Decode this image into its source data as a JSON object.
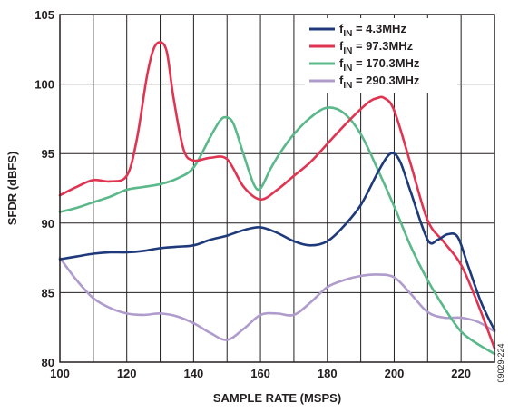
{
  "chart_data": {
    "type": "line",
    "title": "",
    "xlabel": "SAMPLE RATE (MSPS)",
    "ylabel": "SFDR (dBFS)",
    "xlim": [
      100,
      230
    ],
    "ylim": [
      80,
      105
    ],
    "xticks": [
      100,
      120,
      140,
      160,
      180,
      200,
      220
    ],
    "yticks": [
      80,
      85,
      90,
      95,
      100,
      105
    ],
    "grid": true,
    "legend_position": "top-right",
    "series": [
      {
        "name_main": "f",
        "name_sub": "IN",
        "name_rest": " = 4.3MHz",
        "color": "#1f3a7a",
        "x": [
          100,
          105,
          110,
          115,
          120,
          125,
          130,
          135,
          140,
          145,
          150,
          155,
          160,
          165,
          170,
          175,
          180,
          185,
          190,
          195,
          198,
          200,
          202,
          205,
          210,
          213,
          216,
          219,
          222,
          226,
          230
        ],
        "y": [
          87.4,
          87.6,
          87.8,
          87.9,
          87.9,
          88.0,
          88.2,
          88.3,
          88.4,
          88.8,
          89.1,
          89.5,
          89.7,
          89.3,
          88.7,
          88.4,
          88.7,
          89.8,
          91.3,
          93.6,
          94.8,
          95.0,
          94.3,
          92.2,
          88.8,
          88.8,
          89.2,
          89.0,
          87.0,
          84.3,
          82.3
        ]
      },
      {
        "name_main": "f",
        "name_sub": "IN",
        "name_rest": " = 97.3MHz",
        "color": "#e03552",
        "x": [
          100,
          105,
          110,
          115,
          120,
          123,
          126,
          128,
          130,
          132,
          134,
          137,
          140,
          145,
          150,
          155,
          160,
          165,
          170,
          175,
          180,
          185,
          190,
          193,
          195,
          197,
          200,
          205,
          210,
          215,
          220,
          225,
          230
        ],
        "y": [
          92.0,
          92.6,
          93.1,
          93.0,
          93.4,
          96.0,
          100.5,
          102.5,
          103.0,
          102.3,
          99.0,
          95.3,
          94.5,
          94.7,
          94.6,
          92.6,
          91.7,
          92.4,
          93.4,
          94.4,
          95.7,
          97.0,
          98.2,
          98.8,
          99.0,
          99.0,
          98.1,
          94.2,
          90.2,
          88.6,
          87.0,
          84.2,
          81.0
        ]
      },
      {
        "name_main": "f",
        "name_sub": "IN",
        "name_rest": " = 170.3MHz",
        "color": "#5ab88a",
        "x": [
          100,
          105,
          110,
          115,
          120,
          125,
          130,
          135,
          140,
          145,
          148,
          150,
          152,
          155,
          158,
          160,
          163,
          166,
          170,
          175,
          180,
          185,
          190,
          195,
          200,
          205,
          210,
          215,
          220,
          225,
          230
        ],
        "y": [
          90.8,
          91.1,
          91.5,
          91.9,
          92.4,
          92.6,
          92.8,
          93.2,
          94.0,
          96.2,
          97.4,
          97.6,
          97.1,
          94.9,
          92.8,
          92.5,
          93.9,
          95.1,
          96.4,
          97.6,
          98.3,
          97.9,
          96.4,
          93.9,
          91.2,
          88.3,
          85.9,
          83.9,
          82.2,
          81.3,
          80.6
        ]
      },
      {
        "name_main": "f",
        "name_sub": "IN",
        "name_rest": " = 290.3MHz",
        "color": "#b09ccc",
        "x": [
          100,
          105,
          110,
          115,
          120,
          125,
          130,
          135,
          140,
          145,
          150,
          155,
          160,
          165,
          170,
          175,
          180,
          185,
          190,
          195,
          200,
          205,
          210,
          215,
          220,
          225,
          230
        ],
        "y": [
          87.5,
          85.9,
          84.6,
          83.9,
          83.5,
          83.4,
          83.5,
          83.3,
          82.8,
          82.1,
          81.6,
          82.4,
          83.4,
          83.5,
          83.4,
          84.3,
          85.4,
          85.9,
          86.2,
          86.3,
          86.1,
          84.9,
          83.6,
          83.2,
          83.2,
          82.9,
          82.2
        ]
      }
    ]
  },
  "figure_id": "09029-224"
}
